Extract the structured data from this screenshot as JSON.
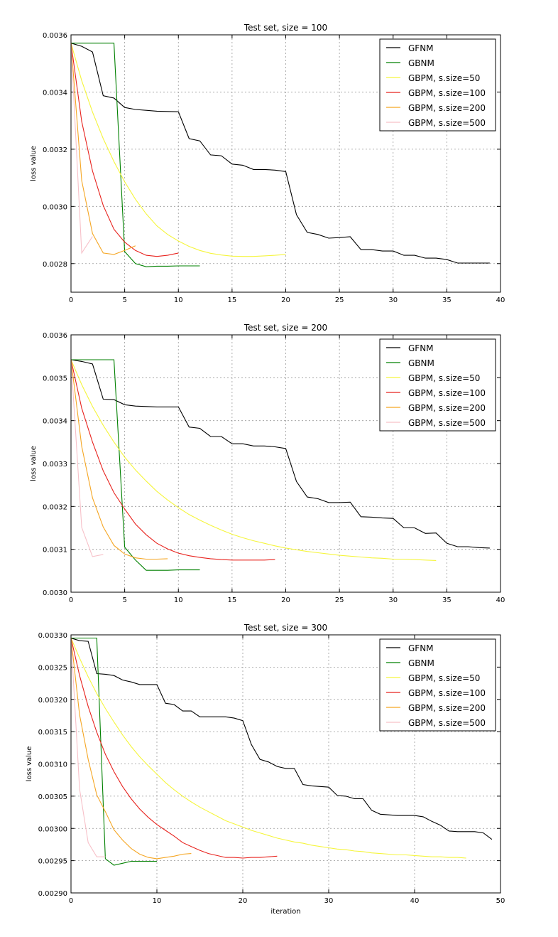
{
  "chart_data": [
    {
      "type": "line",
      "title": "Test set, size = 100",
      "xlabel": "",
      "ylabel": "loss value",
      "xlim": [
        0,
        40
      ],
      "ylim": [
        0.0027,
        0.0036
      ],
      "xticks": [
        0,
        5,
        10,
        15,
        20,
        25,
        30,
        35,
        40
      ],
      "xtick_labels": [
        "0",
        "5",
        "10",
        "15",
        "20",
        "25",
        "30",
        "35",
        "40"
      ],
      "yticks": [
        0.0028,
        0.003,
        0.0032,
        0.0034,
        0.0036
      ],
      "ytick_labels": [
        "0.0028",
        "0.0030",
        "0.0032",
        "0.0034",
        "0.0036"
      ],
      "grid": true,
      "legend_position": "top-right",
      "series": [
        {
          "name": "GFNM",
          "color": "#000000",
          "values": [
            0.003571,
            0.00356,
            0.00354,
            0.003387,
            0.003379,
            0.003346,
            0.003339,
            0.003336,
            0.003333,
            0.003332,
            0.003331,
            0.003237,
            0.003229,
            0.00318,
            0.003177,
            0.003148,
            0.003144,
            0.003129,
            0.003129,
            0.003127,
            0.003122,
            0.002971,
            0.002909,
            0.002902,
            0.002889,
            0.002891,
            0.002894,
            0.002849,
            0.002849,
            0.002844,
            0.002844,
            0.002829,
            0.002829,
            0.002819,
            0.002819,
            0.002814,
            0.002802,
            0.002802,
            0.002802,
            0.002802
          ]
        },
        {
          "name": "GBNM",
          "color": "#008000",
          "values": [
            0.003571,
            0.003571,
            0.003571,
            0.003571,
            0.003571,
            0.002842,
            0.0028,
            0.002789,
            0.002791,
            0.002791,
            0.002792,
            0.002792,
            0.002792
          ]
        },
        {
          "name": "GBPM, s.size=50",
          "color": "#f5f53c",
          "values": [
            0.003571,
            0.00344,
            0.00333,
            0.003237,
            0.003157,
            0.003086,
            0.003025,
            0.002974,
            0.002932,
            0.002902,
            0.002879,
            0.00286,
            0.002846,
            0.002836,
            0.00283,
            0.002826,
            0.002825,
            0.002825,
            0.002827,
            0.002829,
            0.002832
          ]
        },
        {
          "name": "GBPM, s.size=100",
          "color": "#e8231e",
          "values": [
            0.003571,
            0.003297,
            0.003124,
            0.003003,
            0.00292,
            0.002875,
            0.002846,
            0.002829,
            0.002825,
            0.002829,
            0.002837
          ]
        },
        {
          "name": "GBPM, s.size=200",
          "color": "#f5a623",
          "values": [
            0.003571,
            0.00309,
            0.002905,
            0.002837,
            0.002832,
            0.002846,
            0.002862
          ]
        },
        {
          "name": "GBPM, s.size=500",
          "color": "#f7c0c8",
          "values": [
            0.003571,
            0.002837,
            0.002895
          ]
        }
      ]
    },
    {
      "type": "line",
      "title": "Test set, size = 200",
      "xlabel": "",
      "ylabel": "loss value",
      "xlim": [
        0,
        40
      ],
      "ylim": [
        0.003,
        0.0036
      ],
      "xticks": [
        0,
        5,
        10,
        15,
        20,
        25,
        30,
        35,
        40
      ],
      "xtick_labels": [
        "0",
        "5",
        "10",
        "15",
        "20",
        "25",
        "30",
        "35",
        "40"
      ],
      "yticks": [
        0.003,
        0.0031,
        0.0032,
        0.0033,
        0.0034,
        0.0035,
        0.0036
      ],
      "ytick_labels": [
        "0.0030",
        "0.0031",
        "0.0032",
        "0.0033",
        "0.0034",
        "0.0035",
        "0.0036"
      ],
      "grid": true,
      "legend_position": "top-right",
      "series": [
        {
          "name": "GFNM",
          "color": "#000000",
          "values": [
            0.003542,
            0.003538,
            0.003532,
            0.00345,
            0.003449,
            0.003437,
            0.003434,
            0.003433,
            0.003432,
            0.003432,
            0.003432,
            0.003385,
            0.003382,
            0.003363,
            0.003363,
            0.003346,
            0.003346,
            0.003341,
            0.003341,
            0.003339,
            0.003335,
            0.003258,
            0.003222,
            0.003218,
            0.003209,
            0.003209,
            0.00321,
            0.003176,
            0.003175,
            0.003173,
            0.003172,
            0.00315,
            0.00315,
            0.003137,
            0.003138,
            0.003114,
            0.003106,
            0.003106,
            0.003104,
            0.003103
          ]
        },
        {
          "name": "GBNM",
          "color": "#008000",
          "values": [
            0.003542,
            0.003542,
            0.003542,
            0.003542,
            0.003542,
            0.003105,
            0.003075,
            0.003051,
            0.003051,
            0.003051,
            0.003052,
            0.003052,
            0.003052
          ]
        },
        {
          "name": "GBPM, s.size=50",
          "color": "#f5f53c",
          "values": [
            0.003542,
            0.003484,
            0.003433,
            0.003389,
            0.00335,
            0.003315,
            0.003285,
            0.003259,
            0.003235,
            0.003215,
            0.003197,
            0.003181,
            0.003168,
            0.003156,
            0.003145,
            0.003135,
            0.003127,
            0.00312,
            0.003114,
            0.003108,
            0.003103,
            0.003099,
            0.003095,
            0.003092,
            0.003089,
            0.003086,
            0.003084,
            0.003082,
            0.00308,
            0.003079,
            0.003077,
            0.003077,
            0.003076,
            0.003075,
            0.003074
          ]
        },
        {
          "name": "GBPM, s.size=100",
          "color": "#e8231e",
          "values": [
            0.003542,
            0.003429,
            0.00335,
            0.003283,
            0.003232,
            0.003194,
            0.003159,
            0.003134,
            0.003114,
            0.003101,
            0.003091,
            0.003085,
            0.003081,
            0.003078,
            0.003076,
            0.003075,
            0.003075,
            0.003075,
            0.003075,
            0.003076
          ]
        },
        {
          "name": "GBPM, s.size=200",
          "color": "#f5a623",
          "values": [
            0.003542,
            0.00334,
            0.00322,
            0.003152,
            0.003109,
            0.003089,
            0.00308,
            0.003077,
            0.003077,
            0.003078
          ]
        },
        {
          "name": "GBPM, s.size=500",
          "color": "#f7c0c8",
          "values": [
            0.003542,
            0.003151,
            0.003083,
            0.003088
          ]
        }
      ]
    },
    {
      "type": "line",
      "title": "Test set, size = 300",
      "xlabel": "iteration",
      "ylabel": "loss value",
      "xlim": [
        0,
        50
      ],
      "ylim": [
        0.0029,
        0.0033
      ],
      "xticks": [
        0,
        10,
        20,
        30,
        40,
        50
      ],
      "xtick_labels": [
        "0",
        "10",
        "20",
        "30",
        "40",
        "50"
      ],
      "yticks": [
        0.0029,
        0.00295,
        0.003,
        0.00305,
        0.0031,
        0.00315,
        0.0032,
        0.00325,
        0.0033
      ],
      "ytick_labels": [
        "0.00290",
        "0.00295",
        "0.00300",
        "0.00305",
        "0.00310",
        "0.00315",
        "0.00320",
        "0.00325",
        "0.00330"
      ],
      "grid": true,
      "legend_position": "top-right",
      "series": [
        {
          "name": "GFNM",
          "color": "#000000",
          "values": [
            0.003295,
            0.003291,
            0.00329,
            0.00324,
            0.003239,
            0.003237,
            0.00323,
            0.003227,
            0.003223,
            0.003223,
            0.003223,
            0.003194,
            0.003192,
            0.003182,
            0.003182,
            0.003173,
            0.003173,
            0.003173,
            0.003173,
            0.003171,
            0.003167,
            0.00313,
            0.003107,
            0.003103,
            0.003096,
            0.003093,
            0.003093,
            0.003068,
            0.003066,
            0.003065,
            0.003064,
            0.003051,
            0.00305,
            0.003046,
            0.003046,
            0.003028,
            0.003022,
            0.003021,
            0.00302,
            0.00302,
            0.00302,
            0.003018,
            0.003011,
            0.003005,
            0.002996,
            0.002995,
            0.002995,
            0.002995,
            0.002993,
            0.002983
          ]
        },
        {
          "name": "GBNM",
          "color": "#008000",
          "values": [
            0.003295,
            0.003295,
            0.003295,
            0.003295,
            0.002953,
            0.002943,
            0.002946,
            0.002949,
            0.002949,
            0.002949,
            0.002949
          ]
        },
        {
          "name": "GBPM, s.size=50",
          "color": "#f5f53c",
          "values": [
            0.003295,
            0.003264,
            0.003235,
            0.003209,
            0.003186,
            0.003165,
            0.003145,
            0.003127,
            0.003111,
            0.003097,
            0.003084,
            0.003071,
            0.00306,
            0.00305,
            0.003041,
            0.003033,
            0.003026,
            0.003019,
            0.003012,
            0.003007,
            0.003002,
            0.002997,
            0.002993,
            0.002989,
            0.002985,
            0.002982,
            0.002979,
            0.002977,
            0.002974,
            0.002972,
            0.00297,
            0.002968,
            0.002967,
            0.002965,
            0.002964,
            0.002962,
            0.002961,
            0.00296,
            0.002959,
            0.002959,
            0.002958,
            0.002957,
            0.002956,
            0.002956,
            0.002955,
            0.002955,
            0.002954
          ]
        },
        {
          "name": "GBPM, s.size=100",
          "color": "#e8231e",
          "values": [
            0.003295,
            0.003237,
            0.003189,
            0.003149,
            0.003115,
            0.003088,
            0.003065,
            0.003046,
            0.00303,
            0.003017,
            0.003006,
            0.002997,
            0.002988,
            0.002978,
            0.002972,
            0.002966,
            0.002961,
            0.002958,
            0.002955,
            0.002955,
            0.002954,
            0.002955,
            0.002955,
            0.002956,
            0.002957
          ]
        },
        {
          "name": "GBPM, s.size=200",
          "color": "#f5a623",
          "values": [
            0.003295,
            0.003176,
            0.003107,
            0.003052,
            0.003026,
            0.002998,
            0.002982,
            0.002969,
            0.00296,
            0.002955,
            0.002953,
            0.002955,
            0.002957,
            0.00296,
            0.002961
          ]
        },
        {
          "name": "GBPM, s.size=500",
          "color": "#f7c0c8",
          "values": [
            0.003295,
            0.003061,
            0.002978,
            0.002956,
            0.002956
          ]
        }
      ]
    }
  ]
}
